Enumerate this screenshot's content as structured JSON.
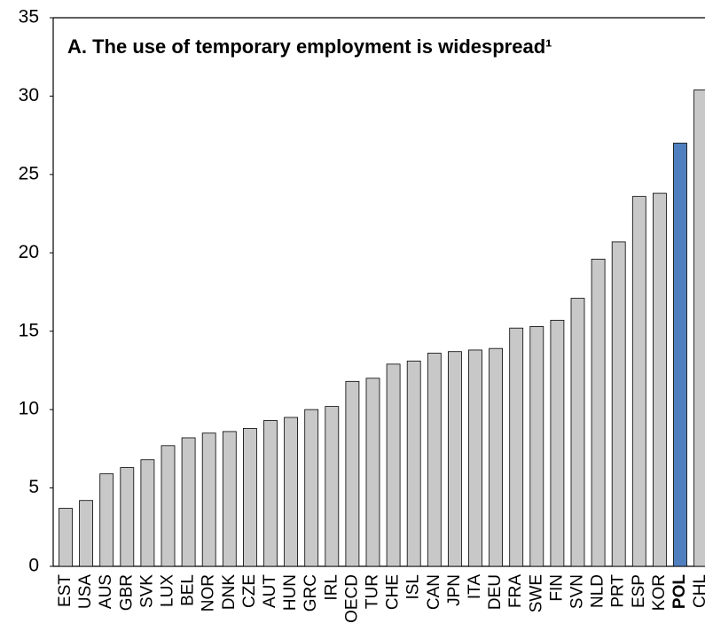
{
  "chart_data": {
    "type": "bar",
    "title": "A. The use of temporary employment is widespread¹",
    "categories": [
      "EST",
      "USA",
      "AUS",
      "GBR",
      "SVK",
      "LUX",
      "BEL",
      "NOR",
      "DNK",
      "CZE",
      "AUT",
      "HUN",
      "GRC",
      "IRL",
      "OECD",
      "TUR",
      "CHE",
      "ISL",
      "CAN",
      "JPN",
      "ITA",
      "DEU",
      "FRA",
      "SWE",
      "FIN",
      "SVN",
      "NLD",
      "PRT",
      "ESP",
      "KOR",
      "POL",
      "CHL"
    ],
    "values": [
      3.7,
      4.2,
      5.9,
      6.3,
      6.8,
      7.7,
      8.2,
      8.5,
      8.6,
      8.8,
      9.3,
      9.5,
      10.0,
      10.2,
      11.8,
      12.0,
      12.9,
      13.1,
      13.6,
      13.7,
      13.8,
      13.9,
      15.2,
      15.3,
      15.7,
      17.1,
      19.6,
      20.7,
      23.6,
      23.8,
      27.0,
      30.4
    ],
    "color": "#c8c8c8",
    "colors": [
      "#c8c8c8",
      "#c8c8c8",
      "#c8c8c8",
      "#c8c8c8",
      "#c8c8c8",
      "#c8c8c8",
      "#c8c8c8",
      "#c8c8c8",
      "#c8c8c8",
      "#c8c8c8",
      "#c8c8c8",
      "#c8c8c8",
      "#c8c8c8",
      "#c8c8c8",
      "#c8c8c8",
      "#c8c8c8",
      "#c8c8c8",
      "#c8c8c8",
      "#c8c8c8",
      "#c8c8c8",
      "#c8c8c8",
      "#c8c8c8",
      "#c8c8c8",
      "#c8c8c8",
      "#c8c8c8",
      "#c8c8c8",
      "#c8c8c8",
      "#c8c8c8",
      "#c8c8c8",
      "#c8c8c8",
      "#4f7fbf",
      "#c8c8c8"
    ],
    "ylim": [
      0,
      35
    ],
    "yticks": [
      0,
      5,
      10,
      15,
      20,
      25,
      30,
      35
    ],
    "grid": false
  }
}
